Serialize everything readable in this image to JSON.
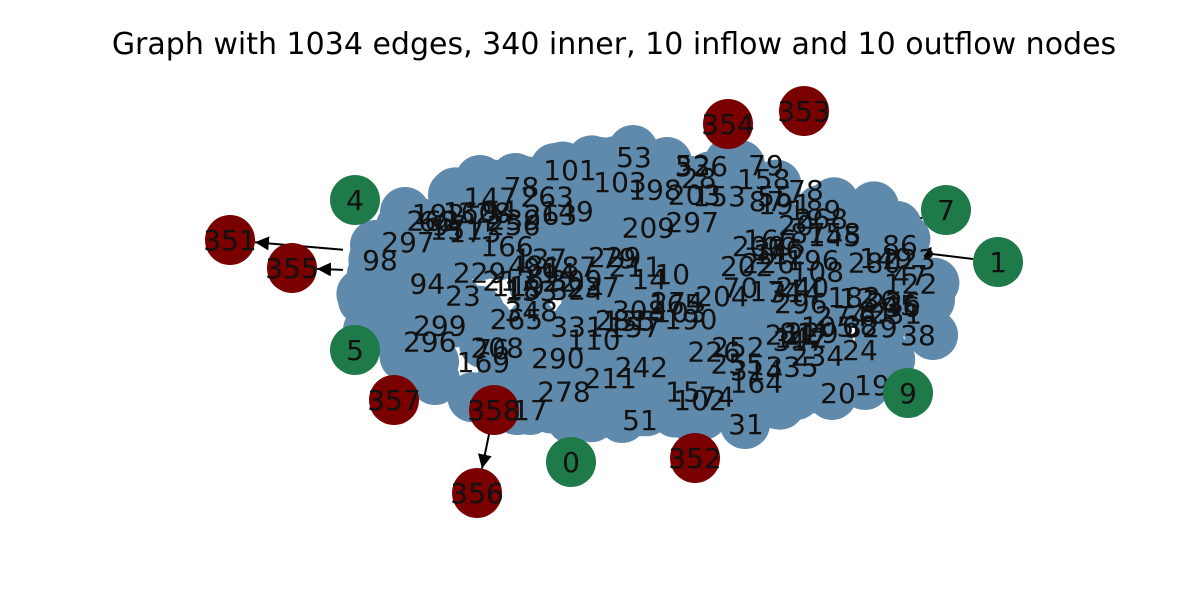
{
  "title": "Graph with 1034 edges, 340 inner, 10 inflow and 10 outflow nodes",
  "colors": {
    "inner": "#5f8aac",
    "inflow": "#1f7a4a",
    "outflow": "#7a0000",
    "edge": "#000000",
    "label": "#111111"
  },
  "inflow_nodes": [
    "4",
    "7",
    "1",
    "5",
    "9",
    "0"
  ],
  "outflow_nodes": [
    "351",
    "355",
    "354",
    "353",
    "357",
    "358",
    "356",
    "352"
  ],
  "edges": [
    {
      "from": "7",
      "to": "inner"
    },
    {
      "from": "1",
      "to": "inner"
    },
    {
      "from": "inner",
      "to": "351"
    },
    {
      "from": "inner",
      "to": "355"
    },
    {
      "from": "inner",
      "to": "353"
    },
    {
      "from": "358",
      "to": "356"
    }
  ],
  "visible_inner_labels": [
    "53",
    "79",
    "78",
    "31",
    "20",
    "19",
    "38",
    "52",
    "101",
    "103",
    "86",
    "51",
    "102",
    "98",
    "47",
    "45",
    "17",
    "24",
    "36"
  ]
}
